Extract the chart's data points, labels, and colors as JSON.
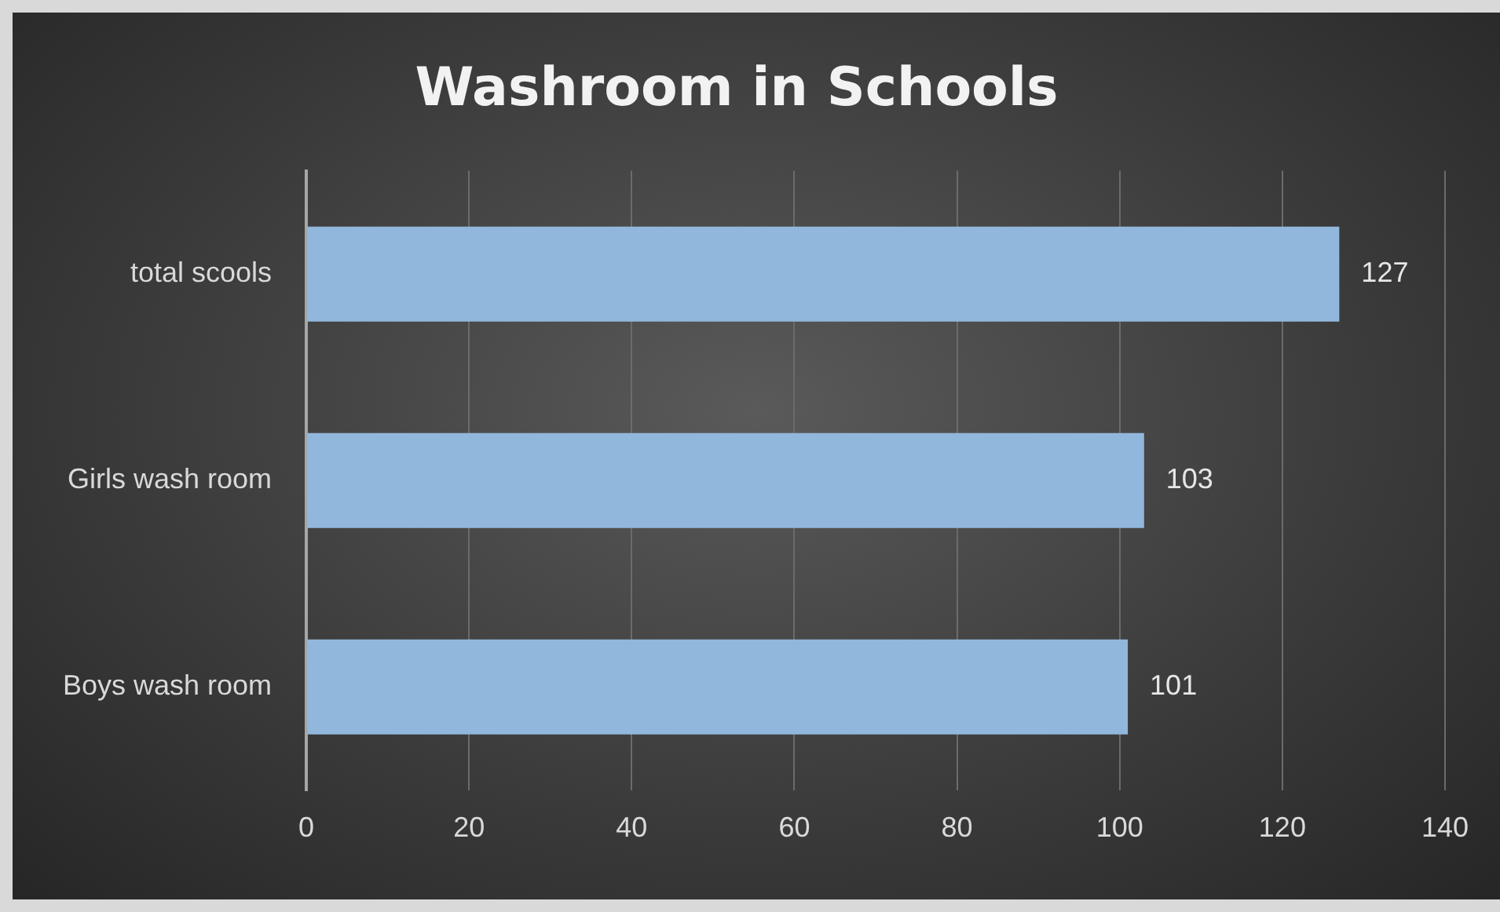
{
  "chart_data": {
    "type": "bar",
    "orientation": "horizontal",
    "title": "Washroom in Schools",
    "categories": [
      "total scools",
      "Girls wash room",
      "Boys wash room"
    ],
    "values": [
      127,
      103,
      101
    ],
    "color": "#92b7dc",
    "xlim": [
      0,
      140
    ],
    "xticks": [
      0,
      20,
      40,
      60,
      80,
      100,
      120,
      140
    ],
    "grid": "x",
    "data_labels": true
  }
}
